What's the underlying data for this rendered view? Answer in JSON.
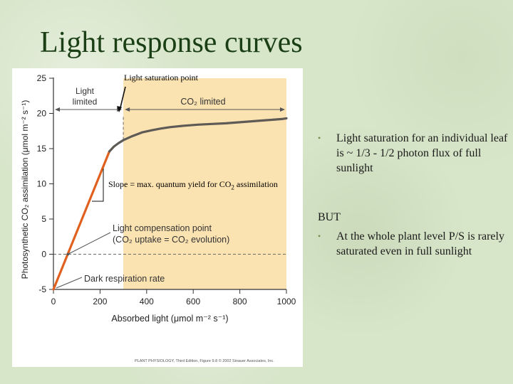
{
  "slide": {
    "title": "Light response curves",
    "saturation_label": "Light saturation point",
    "slope_label_prefix": "Slope = max. quantum yield for CO",
    "slope_label_sub": "2",
    "slope_label_suffix": " assimilation",
    "bullet_glyph": "•",
    "bullets_top": [
      "Light saturation for an individual leaf is ~ 1/3 - 1/2 photon flux of full sunlight"
    ],
    "but_heading": "BUT",
    "bullets_bottom": [
      "At the whole plant level P/S is rarely saturated even in full sunlight"
    ]
  },
  "chart_data": {
    "type": "line",
    "title": "",
    "xlabel": "Absorbed light (μmol m⁻² s⁻¹)",
    "ylabel": "Photosynthetic CO₂ assimilation (μmol m⁻² s⁻¹)",
    "xlim": [
      0,
      1000
    ],
    "ylim": [
      -5,
      25
    ],
    "xticks": [
      0,
      200,
      400,
      600,
      800,
      1000
    ],
    "yticks": [
      -5,
      0,
      5,
      10,
      15,
      20,
      25
    ],
    "grid": false,
    "legend": "none",
    "saturation_x": 300,
    "regions": [
      {
        "label_lines": [
          "Light",
          "limited"
        ],
        "x_start": 0,
        "x_end": 300,
        "color": "#ffffff"
      },
      {
        "label_lines": [
          "CO₂ limited"
        ],
        "x_start": 300,
        "x_end": 1000,
        "color": "#fbe2b1"
      }
    ],
    "series": [
      {
        "name": "",
        "color": "#e0611f",
        "x": [
          0,
          240
        ],
        "y": [
          -5,
          14.6
        ]
      },
      {
        "name": "",
        "color": "#5e5a55",
        "x": [
          240,
          260,
          280,
          300,
          340,
          380,
          420,
          460,
          500,
          560,
          620,
          680,
          740,
          800,
          860,
          920,
          980,
          1000
        ],
        "y": [
          14.6,
          15.3,
          15.8,
          16.2,
          16.8,
          17.3,
          17.6,
          17.85,
          18.05,
          18.25,
          18.4,
          18.5,
          18.6,
          18.75,
          18.9,
          19.05,
          19.2,
          19.3
        ]
      }
    ],
    "annotations": {
      "compensation": [
        "Light compensation point",
        "(CO₂ uptake = CO₂ evolution)"
      ],
      "dark_respiration": "Dark respiration rate",
      "compensation_x": 62,
      "dark_resp_y": -5
    },
    "credit": "PLANT PHYSIOLOGY, Third Edition, Figure 9.8 © 2002 Sinauer Associates, Inc."
  }
}
